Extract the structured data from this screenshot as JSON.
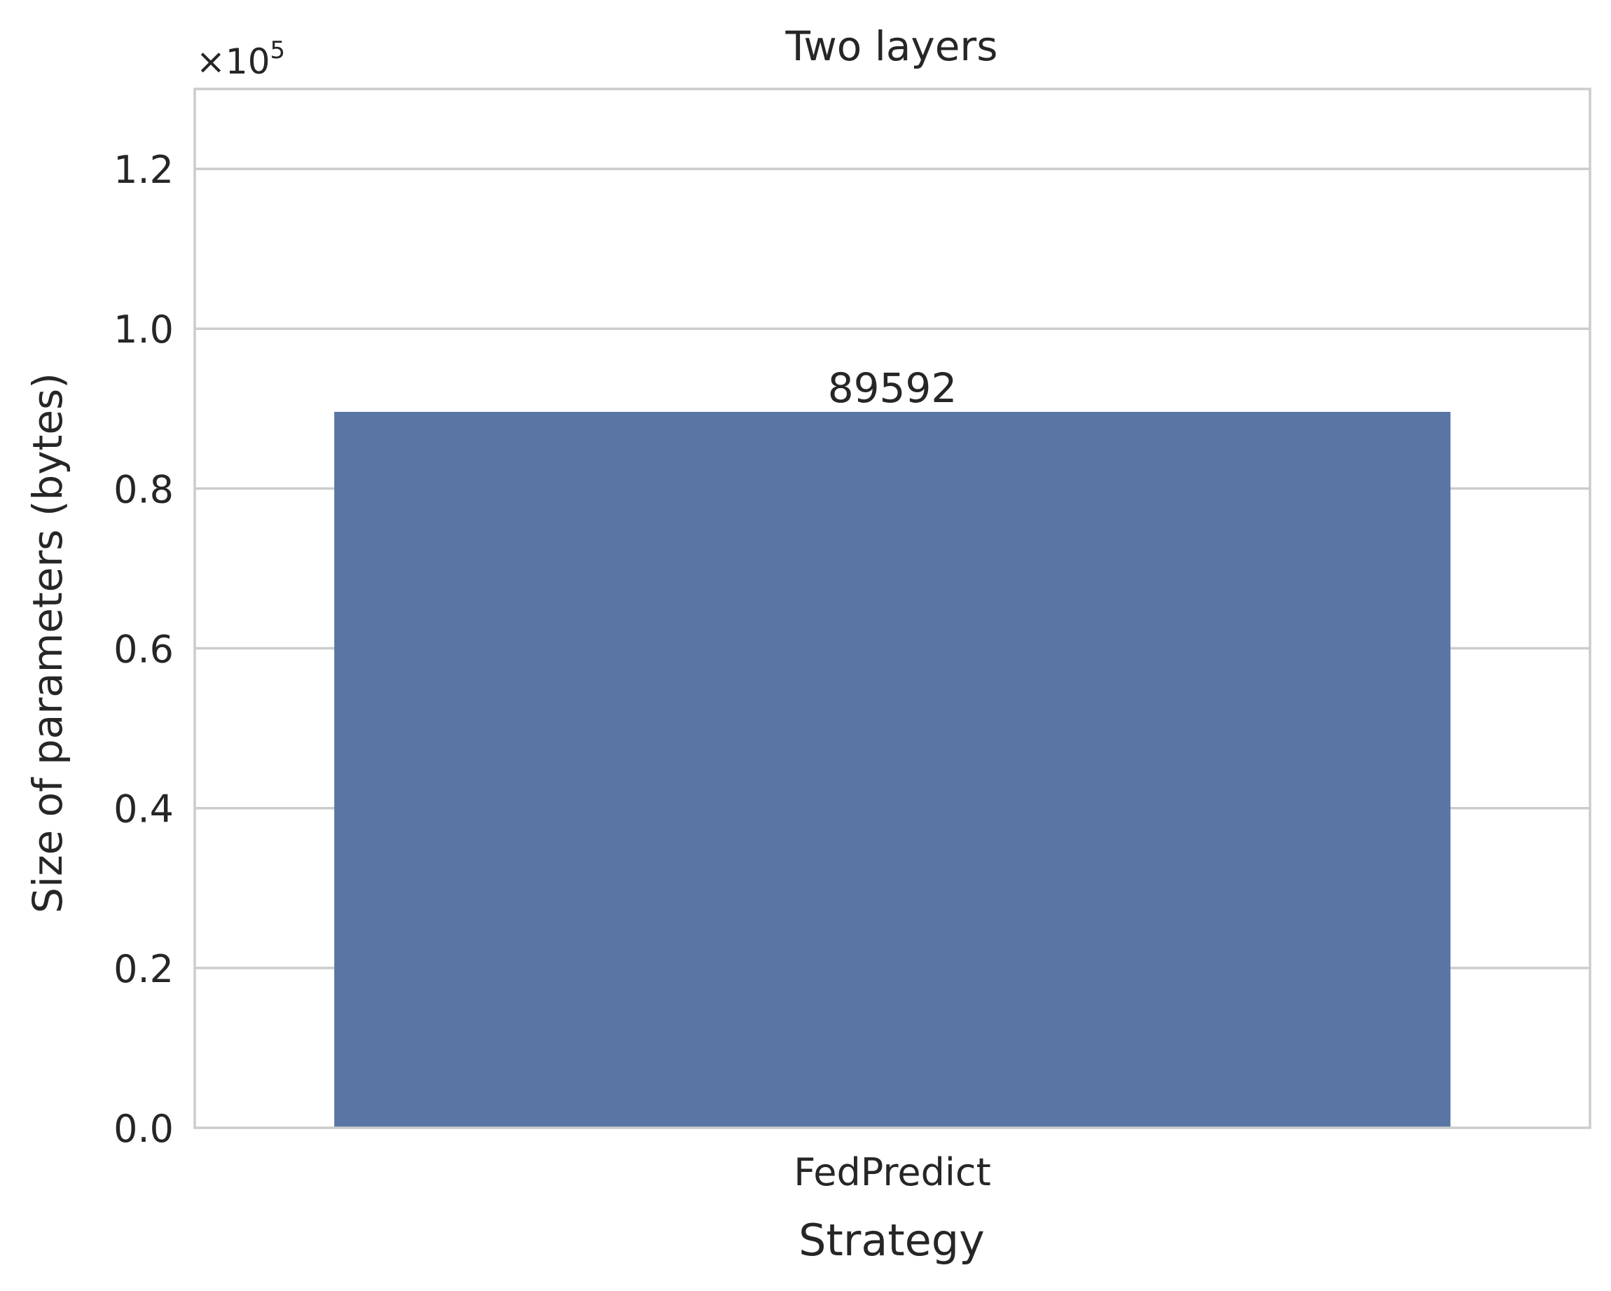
{
  "chart_data": {
    "type": "bar",
    "title": "Two layers",
    "xlabel": "Strategy",
    "ylabel": "Size of parameters (bytes)",
    "categories": [
      "FedPredict"
    ],
    "values": [
      89592
    ],
    "data_labels": [
      "89592"
    ],
    "ylim": [
      0,
      130000
    ],
    "y_ticks": [
      0,
      20000,
      40000,
      60000,
      80000,
      100000,
      120000
    ],
    "y_tick_labels": [
      "0.0",
      "0.2",
      "0.4",
      "0.6",
      "0.8",
      "1.0",
      "1.2"
    ],
    "y_offset_label": {
      "base": "×10",
      "exp": "5"
    },
    "grid": "horizontal",
    "colors": {
      "bar": "#5975a4",
      "grid": "#cccccc",
      "frame": "#cccccc",
      "text": "#262626"
    }
  }
}
